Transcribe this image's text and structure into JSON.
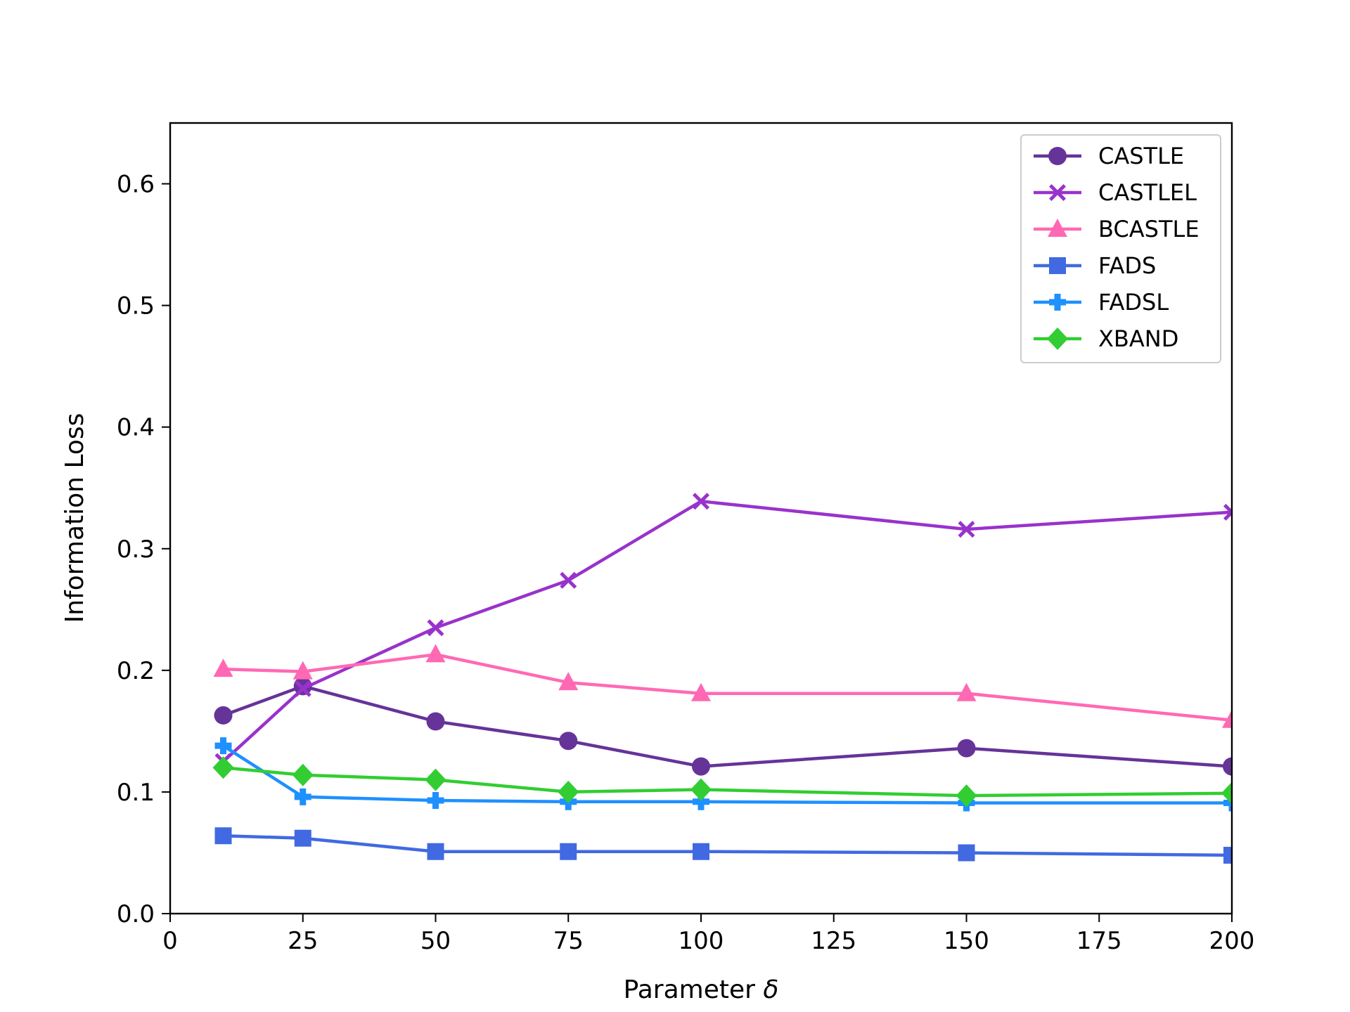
{
  "chart_data": {
    "type": "line",
    "title": "",
    "xlabel": "Parameter",
    "xlabel_symbol": "δ",
    "ylabel": "Information Loss",
    "xlim": [
      0,
      200
    ],
    "ylim": [
      0,
      0.65
    ],
    "xticks": [
      0,
      25,
      50,
      75,
      100,
      125,
      150,
      175,
      200
    ],
    "xtick_labels": [
      "0",
      "25",
      "50",
      "75",
      "100",
      "125",
      "150",
      "175",
      "200"
    ],
    "yticks": [
      0.0,
      0.1,
      0.2,
      0.3,
      0.4,
      0.5,
      0.6
    ],
    "ytick_labels": [
      "0.0",
      "0.1",
      "0.2",
      "0.3",
      "0.4",
      "0.5",
      "0.6"
    ],
    "grid": false,
    "legend_position": "top-right",
    "x": [
      10,
      25,
      50,
      75,
      100,
      150,
      200
    ],
    "series": [
      {
        "name": "CASTLE",
        "color": "#663399",
        "marker": "circle",
        "values": [
          0.163,
          0.187,
          0.158,
          0.142,
          0.121,
          0.136,
          0.121
        ]
      },
      {
        "name": "CASTLEL",
        "color": "#9932CC",
        "marker": "x-filled",
        "values": [
          0.125,
          0.185,
          0.235,
          0.274,
          0.339,
          0.316,
          0.33
        ]
      },
      {
        "name": "BCASTLE",
        "color": "#FF69B4",
        "marker": "triangle",
        "values": [
          0.201,
          0.199,
          0.213,
          0.19,
          0.181,
          0.181,
          0.159
        ]
      },
      {
        "name": "FADS",
        "color": "#4169E1",
        "marker": "square",
        "values": [
          0.064,
          0.062,
          0.051,
          0.051,
          0.051,
          0.05,
          0.048
        ]
      },
      {
        "name": "FADSL",
        "color": "#1E90FF",
        "marker": "plus-filled",
        "values": [
          0.138,
          0.096,
          0.093,
          0.092,
          0.092,
          0.091,
          0.091
        ]
      },
      {
        "name": "XBAND",
        "color": "#32CD32",
        "marker": "diamond",
        "values": [
          0.12,
          0.114,
          0.11,
          0.1,
          0.102,
          0.097,
          0.099
        ]
      }
    ]
  }
}
